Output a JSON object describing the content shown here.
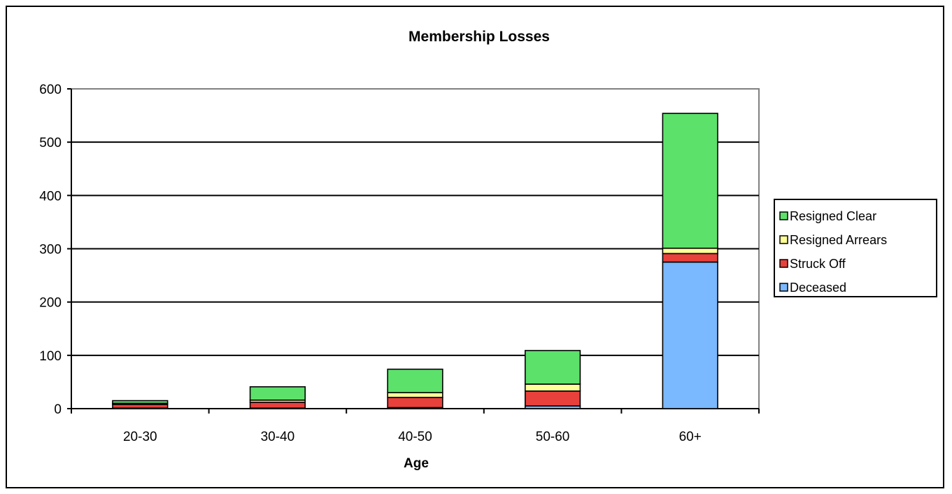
{
  "chart_data": {
    "type": "bar",
    "stacked": true,
    "title": "Membership Losses",
    "xlabel": "Age",
    "ylabel": "",
    "categories": [
      "20-30",
      "30-40",
      "40-50",
      "50-60",
      "60+"
    ],
    "series": [
      {
        "name": "Deceased",
        "color": "#7ab8ff",
        "values": [
          1,
          1,
          2,
          5,
          275
        ]
      },
      {
        "name": "Struck Off",
        "color": "#e8413c",
        "values": [
          7,
          11,
          19,
          28,
          16
        ]
      },
      {
        "name": "Resigned Arrears",
        "color": "#ffff99",
        "values": [
          2,
          4,
          9,
          13,
          10
        ]
      },
      {
        "name": "Resigned Clear",
        "color": "#5ce16b",
        "values": [
          5,
          25,
          44,
          63,
          253
        ]
      }
    ],
    "ylim": [
      0,
      600
    ],
    "yticks": [
      0,
      100,
      200,
      300,
      400,
      500,
      600
    ],
    "grid": true,
    "legend_position": "right",
    "plot_border_color": "#808080"
  }
}
